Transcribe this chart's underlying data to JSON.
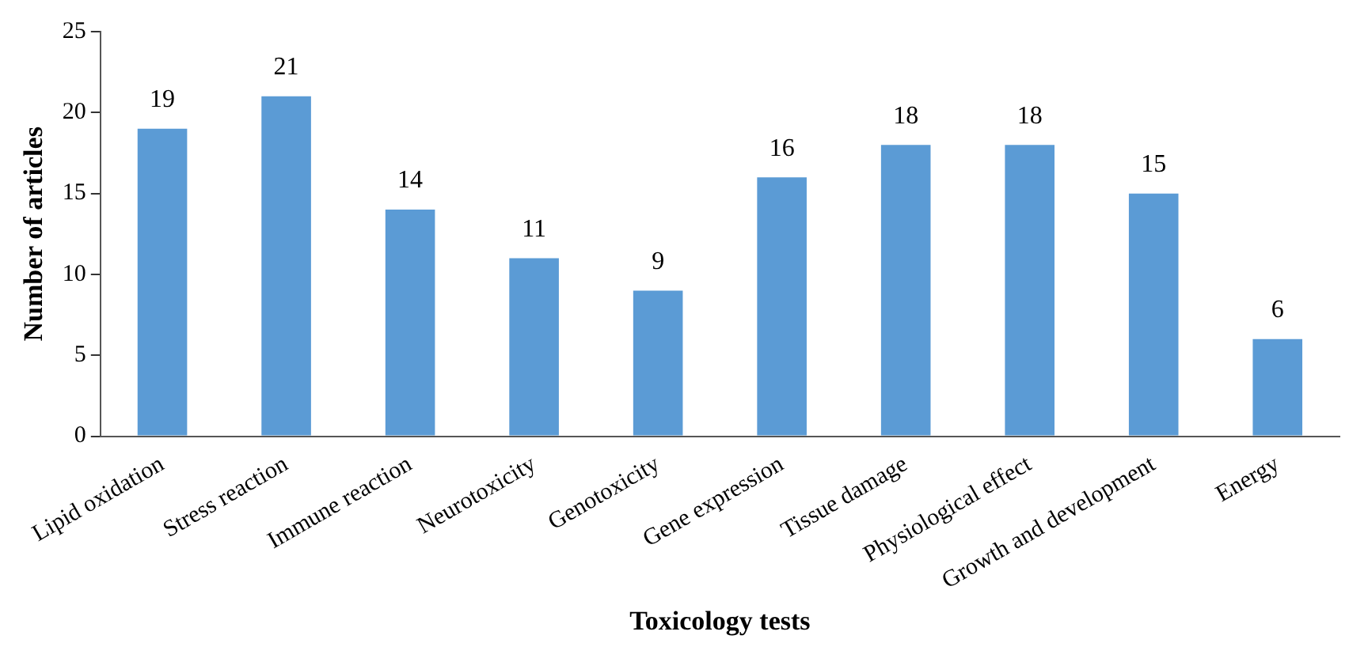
{
  "chart_data": {
    "type": "bar",
    "xlabel": "Toxicology tests",
    "ylabel": "Number of articles",
    "categories": [
      "Lipid oxidation",
      "Stress reaction",
      "Immune reaction",
      "Neurotoxicity",
      "Genotoxicity",
      "Gene expression",
      "Tissue damage",
      "Physiological effect",
      "Growth and development",
      "Energy"
    ],
    "values": [
      19,
      21,
      14,
      11,
      9,
      16,
      18,
      18,
      15,
      6
    ],
    "color": "#5b9bd5",
    "ylim": [
      0,
      25
    ],
    "yticks": [
      0,
      5,
      10,
      15,
      20,
      25
    ],
    "data_labels": true
  }
}
